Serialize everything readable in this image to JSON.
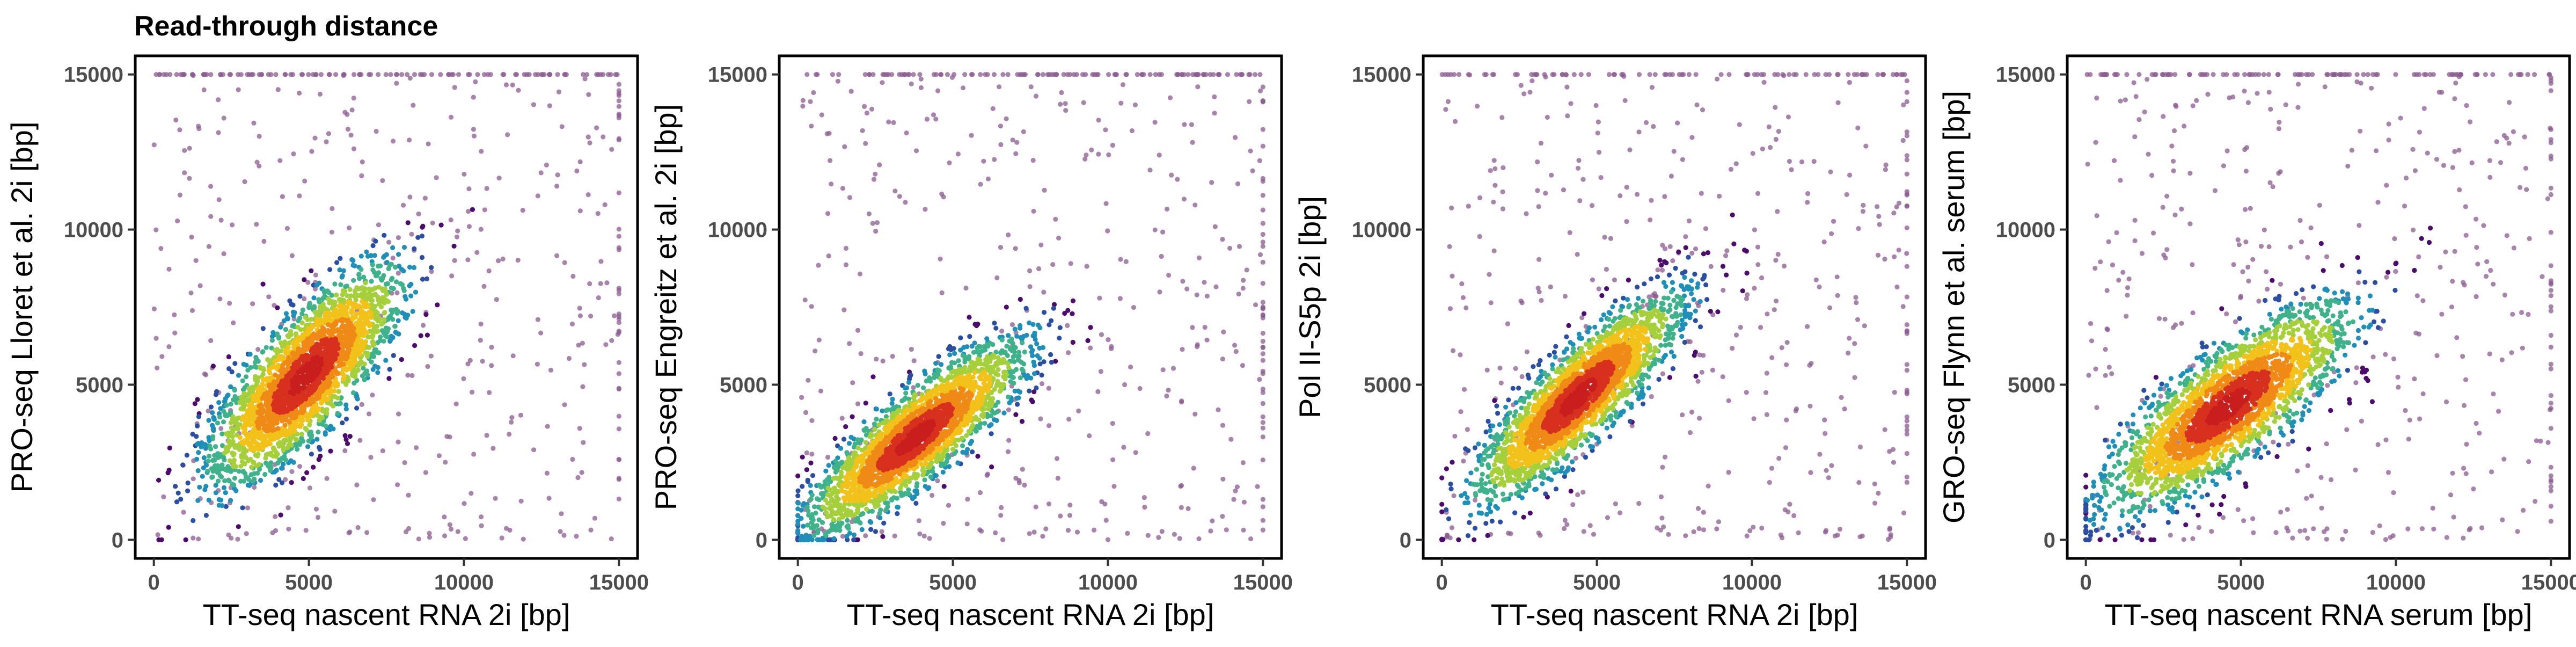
{
  "figure": {
    "title": "Read-through distance"
  },
  "density_palette": [
    "#4b0c6b",
    "#2b4ea0",
    "#1f8fb8",
    "#3fb28b",
    "#a6cf3c",
    "#f2c21b",
    "#f08a16",
    "#d7301f",
    "#c81e1e"
  ],
  "outlier_color": "#8a5c8f",
  "chart_data": [
    {
      "type": "scatter",
      "title": "Read-through distance",
      "xlabel": "TT-seq nascent RNA 2i [bp]",
      "ylabel": "PRO-seq Lloret et al. 2i [bp]",
      "xlim": [
        -600,
        15600
      ],
      "ylim": [
        -600,
        15600
      ],
      "x_ticks": [
        0,
        5000,
        10000,
        15000
      ],
      "y_ticks": [
        0,
        5000,
        10000,
        15000
      ],
      "x_tick_labels": [
        "0",
        "5000",
        "10000",
        "15000"
      ],
      "y_tick_labels": [
        "0",
        "5000",
        "10000",
        "15000"
      ],
      "grid": false,
      "density_center": [
        4900,
        5300
      ],
      "density_sd": [
        1500,
        1700
      ],
      "density_corr": 0.78,
      "n_points": 2600,
      "n_background": 500,
      "seed": 11
    },
    {
      "type": "scatter",
      "title": "",
      "xlabel": "TT-seq nascent RNA 2i [bp]",
      "ylabel": "PRO-seq Engreitz et al. 2i [bp]",
      "xlim": [
        -600,
        15600
      ],
      "ylim": [
        -600,
        15600
      ],
      "x_ticks": [
        0,
        5000,
        10000,
        15000
      ],
      "y_ticks": [
        0,
        5000,
        10000,
        15000
      ],
      "x_tick_labels": [
        "0",
        "5000",
        "10000",
        "15000"
      ],
      "y_tick_labels": [
        "0",
        "5000",
        "10000",
        "15000"
      ],
      "grid": false,
      "density_center": [
        3800,
        3300
      ],
      "density_sd": [
        1700,
        1500
      ],
      "density_corr": 0.85,
      "n_points": 2600,
      "n_background": 500,
      "seed": 23
    },
    {
      "type": "scatter",
      "title": "",
      "xlabel": "TT-seq nascent RNA 2i [bp]",
      "ylabel": "Pol II-S5p 2i [bp]",
      "xlim": [
        -600,
        15600
      ],
      "ylim": [
        -600,
        15600
      ],
      "x_ticks": [
        0,
        5000,
        10000,
        15000
      ],
      "y_ticks": [
        0,
        5000,
        10000,
        15000
      ],
      "x_tick_labels": [
        "0",
        "5000",
        "10000",
        "15000"
      ],
      "y_tick_labels": [
        "0",
        "5000",
        "10000",
        "15000"
      ],
      "grid": false,
      "density_center": [
        4400,
        4600
      ],
      "density_sd": [
        1600,
        1600
      ],
      "density_corr": 0.85,
      "n_points": 2600,
      "n_background": 500,
      "seed": 37
    },
    {
      "type": "scatter",
      "title": "",
      "xlabel": "TT-seq nascent RNA serum [bp]",
      "ylabel": "GRO-seq Flynn et al. serum [bp]",
      "xlim": [
        -600,
        15600
      ],
      "ylim": [
        -600,
        15600
      ],
      "x_ticks": [
        0,
        5000,
        10000,
        15000
      ],
      "y_ticks": [
        0,
        5000,
        10000,
        15000
      ],
      "x_tick_labels": [
        "0",
        "5000",
        "10000",
        "15000"
      ],
      "y_tick_labels": [
        "0",
        "5000",
        "10000",
        "15000"
      ],
      "grid": false,
      "density_center": [
        4600,
        4300
      ],
      "density_sd": [
        1900,
        1600
      ],
      "density_corr": 0.8,
      "n_points": 2600,
      "n_background": 500,
      "seed": 53
    }
  ]
}
